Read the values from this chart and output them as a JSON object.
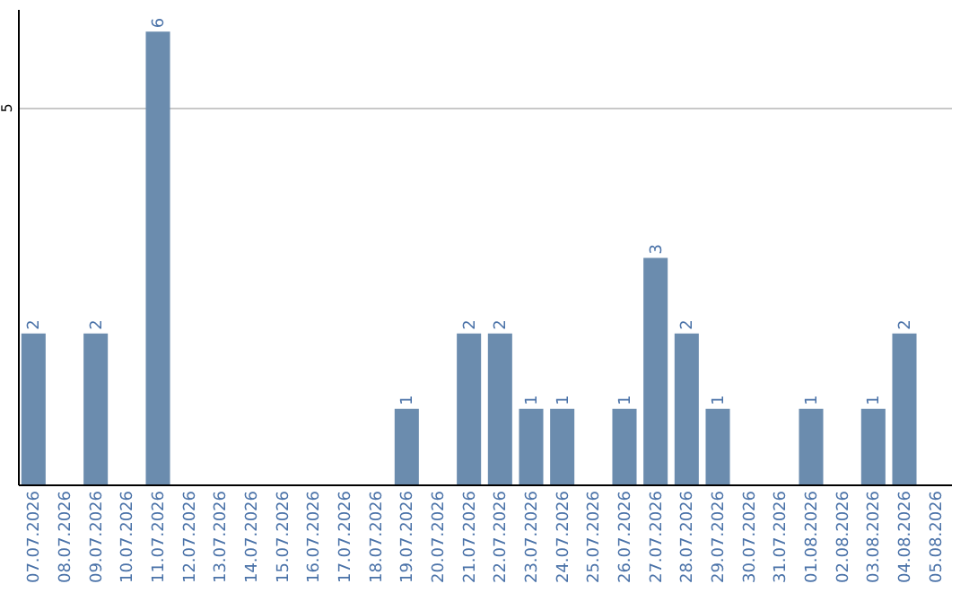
{
  "chart_data": {
    "type": "bar",
    "categories": [
      "07.07.2026",
      "08.07.2026",
      "09.07.2026",
      "10.07.2026",
      "11.07.2026",
      "12.07.2026",
      "13.07.2026",
      "14.07.2026",
      "15.07.2026",
      "16.07.2026",
      "17.07.2026",
      "18.07.2026",
      "19.07.2026",
      "20.07.2026",
      "21.07.2026",
      "22.07.2026",
      "23.07.2026",
      "24.07.2026",
      "25.07.2026",
      "26.07.2026",
      "27.07.2026",
      "28.07.2026",
      "29.07.2026",
      "30.07.2026",
      "31.07.2026",
      "01.08.2026",
      "02.08.2026",
      "03.08.2026",
      "04.08.2026",
      "05.08.2026"
    ],
    "values": [
      2,
      0,
      2,
      0,
      6,
      0,
      0,
      0,
      0,
      0,
      0,
      0,
      1,
      0,
      2,
      2,
      1,
      1,
      0,
      1,
      3,
      2,
      1,
      0,
      0,
      1,
      0,
      1,
      2,
      0
    ],
    "value_labels": [
      "2",
      null,
      "2",
      null,
      "6",
      null,
      null,
      null,
      null,
      null,
      null,
      null,
      "1",
      null,
      "2",
      "2",
      "1",
      "1",
      null,
      "1",
      "3",
      "2",
      "1",
      null,
      null,
      "1",
      null,
      "1",
      "2",
      null
    ],
    "color": "#6b8cae",
    "ylim": [
      0,
      6.3
    ],
    "yticks": [
      5
    ],
    "grid": "y"
  }
}
